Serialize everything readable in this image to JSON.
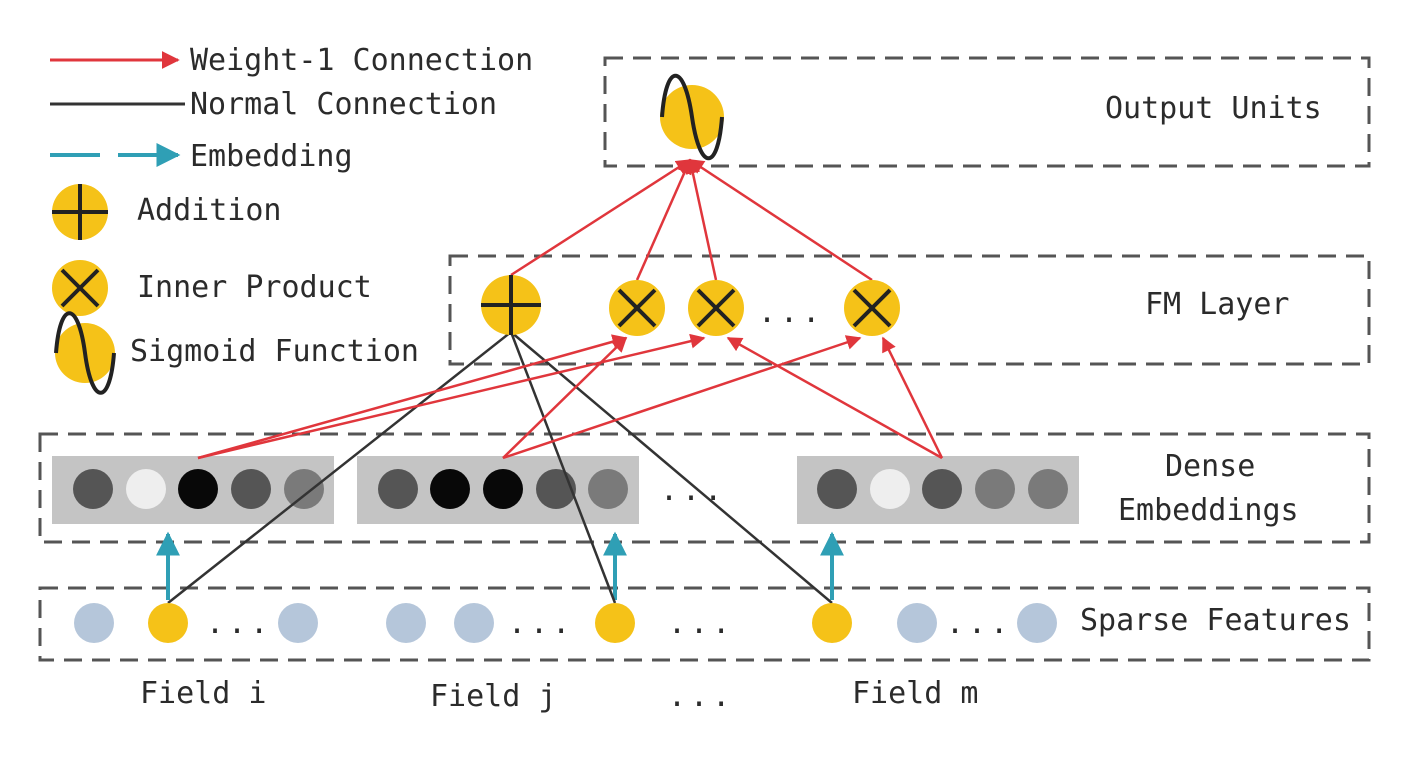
{
  "legend": {
    "weight1": "Weight-1 Connection",
    "normal": "Normal Connection",
    "embedding": "Embedding",
    "addition": "Addition",
    "inner_product": "Inner Product",
    "sigmoid": "Sigmoid Function"
  },
  "layers": {
    "output": "Output Units",
    "fm": "FM Layer",
    "dense_line1": "Dense",
    "dense_line2": "Embeddings",
    "sparse": "Sparse Features"
  },
  "fields": {
    "i": "Field i",
    "j": "Field j",
    "ellipsis": "...",
    "m": "Field m"
  },
  "ellipses": {
    "fm": "...",
    "dense": "...",
    "sparse_i": "...",
    "sparse_j": "...",
    "sparse_between": "...",
    "sparse_m": "..."
  },
  "colors": {
    "weight1": "#e0363c",
    "normal": "#333333",
    "embedding": "#2f9fb5",
    "unit": "#f5c218",
    "sparse_inactive": "#b5c6da",
    "embedding_bg": "#c4c4c4",
    "dash": "#555555"
  }
}
